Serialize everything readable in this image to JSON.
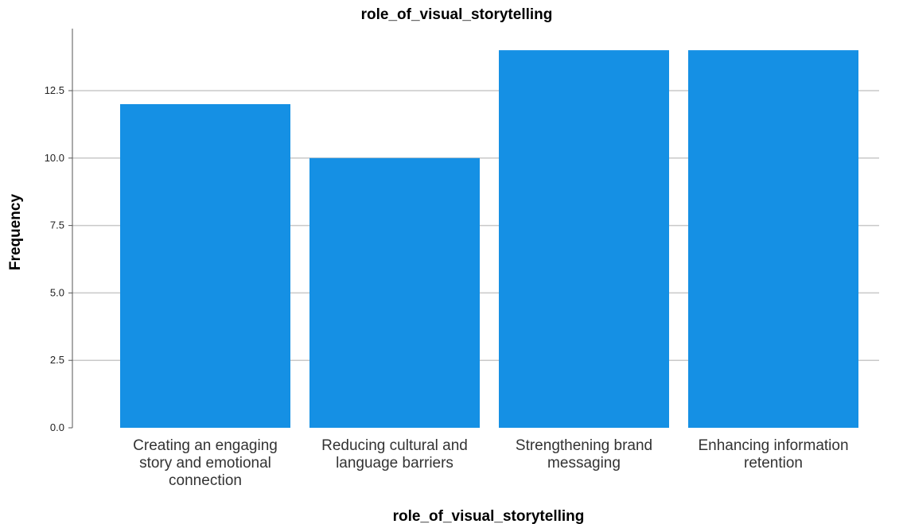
{
  "chart_data": {
    "type": "bar",
    "title": "role_of_visual_storytelling",
    "xlabel": "role_of_visual_storytelling",
    "ylabel": "Frequency",
    "categories": [
      "Creating an engaging story and emotional connection",
      "Reducing cultural and language barriers",
      "Strengthening brand messaging",
      "Enhancing information retention"
    ],
    "category_label_lines": [
      [
        "Creating an engaging",
        "story and emotional",
        "connection"
      ],
      [
        "Reducing cultural and",
        "language barriers"
      ],
      [
        "Strengthening brand",
        "messaging"
      ],
      [
        "Enhancing information",
        "retention"
      ]
    ],
    "values": [
      12,
      10,
      14,
      14
    ],
    "ylim": [
      0,
      14.8
    ],
    "yticks": [
      0.0,
      2.5,
      5.0,
      7.5,
      10.0,
      12.5
    ],
    "ytick_labels": [
      "0.0",
      "2.5",
      "5.0",
      "7.5",
      "10.0",
      "12.5"
    ],
    "grid": "horizontal",
    "legend": "none",
    "bar_color": "#1590e4",
    "grid_color": "#c8c8c8",
    "axis_color": "#555555"
  }
}
